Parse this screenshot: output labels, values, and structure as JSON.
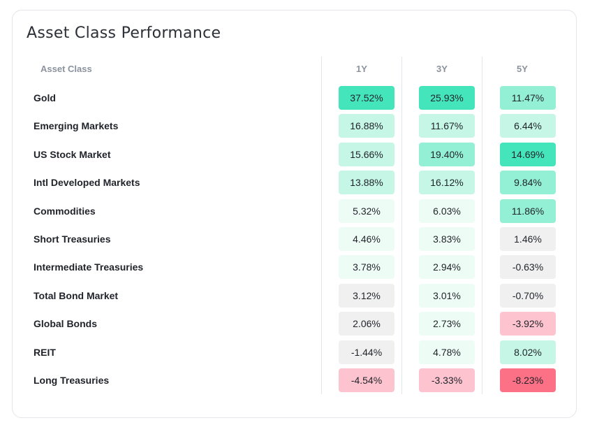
{
  "title": "Asset Class Performance",
  "headers": {
    "asset": "Asset Class",
    "y1": "1Y",
    "y3": "3Y",
    "y5": "5Y"
  },
  "rows": [
    {
      "name": "Gold",
      "y1": "37.52%",
      "y3": "25.93%",
      "y5": "11.47%"
    },
    {
      "name": "Emerging Markets",
      "y1": "16.88%",
      "y3": "11.67%",
      "y5": "6.44%"
    },
    {
      "name": "US Stock Market",
      "y1": "15.66%",
      "y3": "19.40%",
      "y5": "14.69%"
    },
    {
      "name": "Intl Developed Markets",
      "y1": "13.88%",
      "y3": "16.12%",
      "y5": "9.84%"
    },
    {
      "name": "Commodities",
      "y1": "5.32%",
      "y3": "6.03%",
      "y5": "11.86%"
    },
    {
      "name": "Short Treasuries",
      "y1": "4.46%",
      "y3": "3.83%",
      "y5": "1.46%"
    },
    {
      "name": "Intermediate Treasuries",
      "y1": "3.78%",
      "y3": "2.94%",
      "y5": "-0.63%"
    },
    {
      "name": "Total Bond Market",
      "y1": "3.12%",
      "y3": "3.01%",
      "y5": "-0.70%"
    },
    {
      "name": "Global Bonds",
      "y1": "2.06%",
      "y3": "2.73%",
      "y5": "-3.92%"
    },
    {
      "name": "REIT",
      "y1": "-1.44%",
      "y3": "4.78%",
      "y5": "8.02%"
    },
    {
      "name": "Long Treasuries",
      "y1": "-4.54%",
      "y3": "-3.33%",
      "y5": "-8.23%"
    }
  ],
  "colors": {
    "strong_green": "#45e5bb",
    "mid_green": "#94f0d4",
    "light_green": "#c6f6e6",
    "pale_green": "#eefcf6",
    "neutral": "#f0f0f0",
    "light_red": "#fdc4d0",
    "strong_red": "#fd7187"
  },
  "cell_colors": [
    [
      "strong_green",
      "strong_green",
      "mid_green"
    ],
    [
      "light_green",
      "light_green",
      "light_green"
    ],
    [
      "light_green",
      "mid_green",
      "strong_green"
    ],
    [
      "light_green",
      "light_green",
      "mid_green"
    ],
    [
      "pale_green",
      "pale_green",
      "mid_green"
    ],
    [
      "pale_green",
      "pale_green",
      "neutral"
    ],
    [
      "pale_green",
      "pale_green",
      "neutral"
    ],
    [
      "neutral",
      "pale_green",
      "neutral"
    ],
    [
      "neutral",
      "pale_green",
      "light_red"
    ],
    [
      "neutral",
      "pale_green",
      "light_green"
    ],
    [
      "light_red",
      "light_red",
      "strong_red"
    ]
  ]
}
